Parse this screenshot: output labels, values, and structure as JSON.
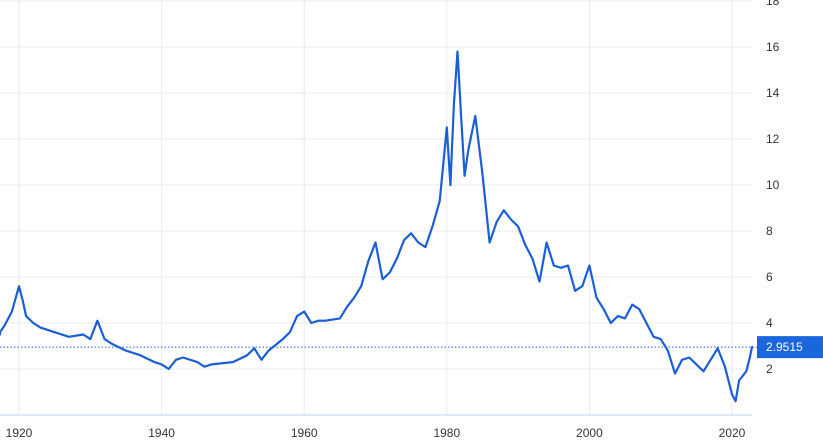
{
  "chart_data": {
    "type": "line",
    "title": "",
    "xlabel": "",
    "ylabel": "",
    "xlim": [
      1915,
      2024
    ],
    "ylim": [
      0,
      18
    ],
    "x_ticks": [
      1920,
      1940,
      1960,
      1980,
      2000,
      2020
    ],
    "y_ticks": [
      2,
      4,
      6,
      8,
      10,
      12,
      14,
      16,
      18
    ],
    "grid": true,
    "last_value": "2.9515",
    "colors": {
      "line": "#1a5fd6",
      "last_value_bg": "#1a66dd",
      "grid": "#e6e9ee"
    },
    "series": [
      {
        "x": [
          1915,
          1917,
          1918,
          1919,
          1920,
          1920.5,
          1921,
          1922,
          1923,
          1925,
          1927,
          1929,
          1930,
          1931,
          1932,
          1933,
          1935,
          1937,
          1939,
          1940,
          1941,
          1942,
          1943,
          1945,
          1946,
          1947,
          1950,
          1952,
          1953,
          1954,
          1955,
          1957,
          1958,
          1959,
          1960,
          1961,
          1962,
          1963,
          1965,
          1966,
          1967,
          1968,
          1969,
          1970,
          1971,
          1972,
          1973,
          1974,
          1975,
          1976,
          1977,
          1978,
          1979,
          1980,
          1980.5,
          1981,
          1981.5,
          1982,
          1982.5,
          1983,
          1984,
          1985,
          1986,
          1987,
          1988,
          1989,
          1990,
          1991,
          1992,
          1993,
          1994,
          1995,
          1996,
          1997,
          1998,
          1999,
          2000,
          2001,
          2002,
          2003,
          2004,
          2005,
          2006,
          2007,
          2008,
          2009,
          2010,
          2011,
          2012,
          2013,
          2014,
          2015,
          2016,
          2017,
          2018,
          2019,
          2020,
          2020.5,
          2021,
          2022,
          2022.5,
          2023
        ],
        "values": [
          3.5,
          3.6,
          3.9,
          4.5,
          5.6,
          5.0,
          4.3,
          4.0,
          3.8,
          3.6,
          3.4,
          3.5,
          3.3,
          4.1,
          3.3,
          3.1,
          2.8,
          2.6,
          2.3,
          2.2,
          2.0,
          2.4,
          2.5,
          2.3,
          2.1,
          2.2,
          2.3,
          2.6,
          2.9,
          2.4,
          2.8,
          3.3,
          3.6,
          4.3,
          4.5,
          4.0,
          4.1,
          4.1,
          4.2,
          4.7,
          5.1,
          5.6,
          6.7,
          7.5,
          5.9,
          6.2,
          6.8,
          7.6,
          7.9,
          7.5,
          7.3,
          8.2,
          9.3,
          12.5,
          10.0,
          13.5,
          15.8,
          13.0,
          10.4,
          11.5,
          13.0,
          10.5,
          7.5,
          8.4,
          8.9,
          8.5,
          8.2,
          7.4,
          6.8,
          5.8,
          7.5,
          6.5,
          6.4,
          6.5,
          5.4,
          5.6,
          6.5,
          5.1,
          4.6,
          4.0,
          4.3,
          4.2,
          4.8,
          4.6,
          4.0,
          3.4,
          3.3,
          2.8,
          1.8,
          2.4,
          2.5,
          2.2,
          1.9,
          2.4,
          2.9,
          2.1,
          0.9,
          0.6,
          1.5,
          1.9,
          2.5,
          2.95
        ]
      }
    ]
  }
}
